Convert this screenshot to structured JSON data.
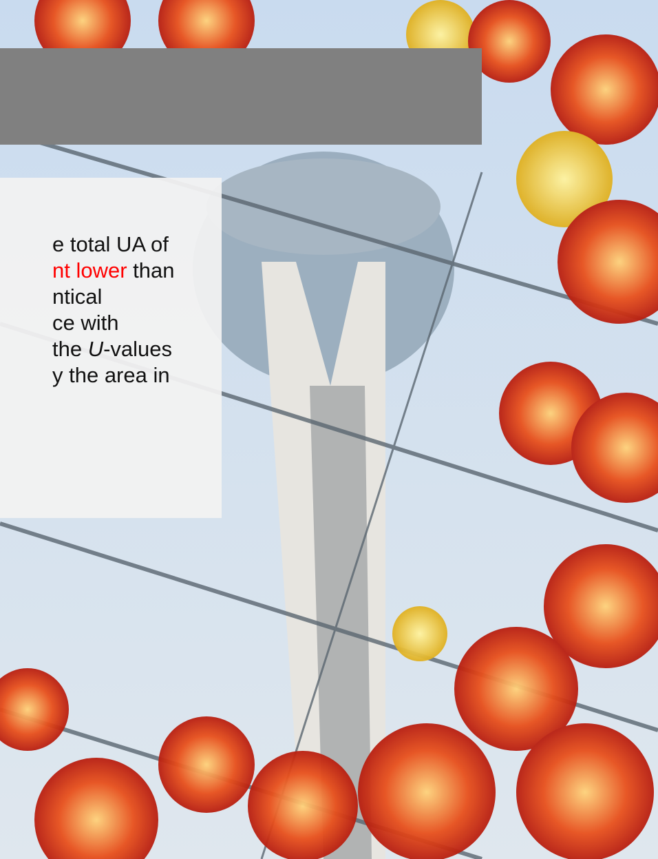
{
  "text_box": {
    "lines": [
      [
        "e total UA of"
      ],
      [
        "nt lower",
        " than"
      ],
      [
        "ntical"
      ],
      [
        "ce with"
      ],
      [
        "the ",
        "U",
        "-values"
      ],
      [
        "y the area in"
      ]
    ]
  }
}
